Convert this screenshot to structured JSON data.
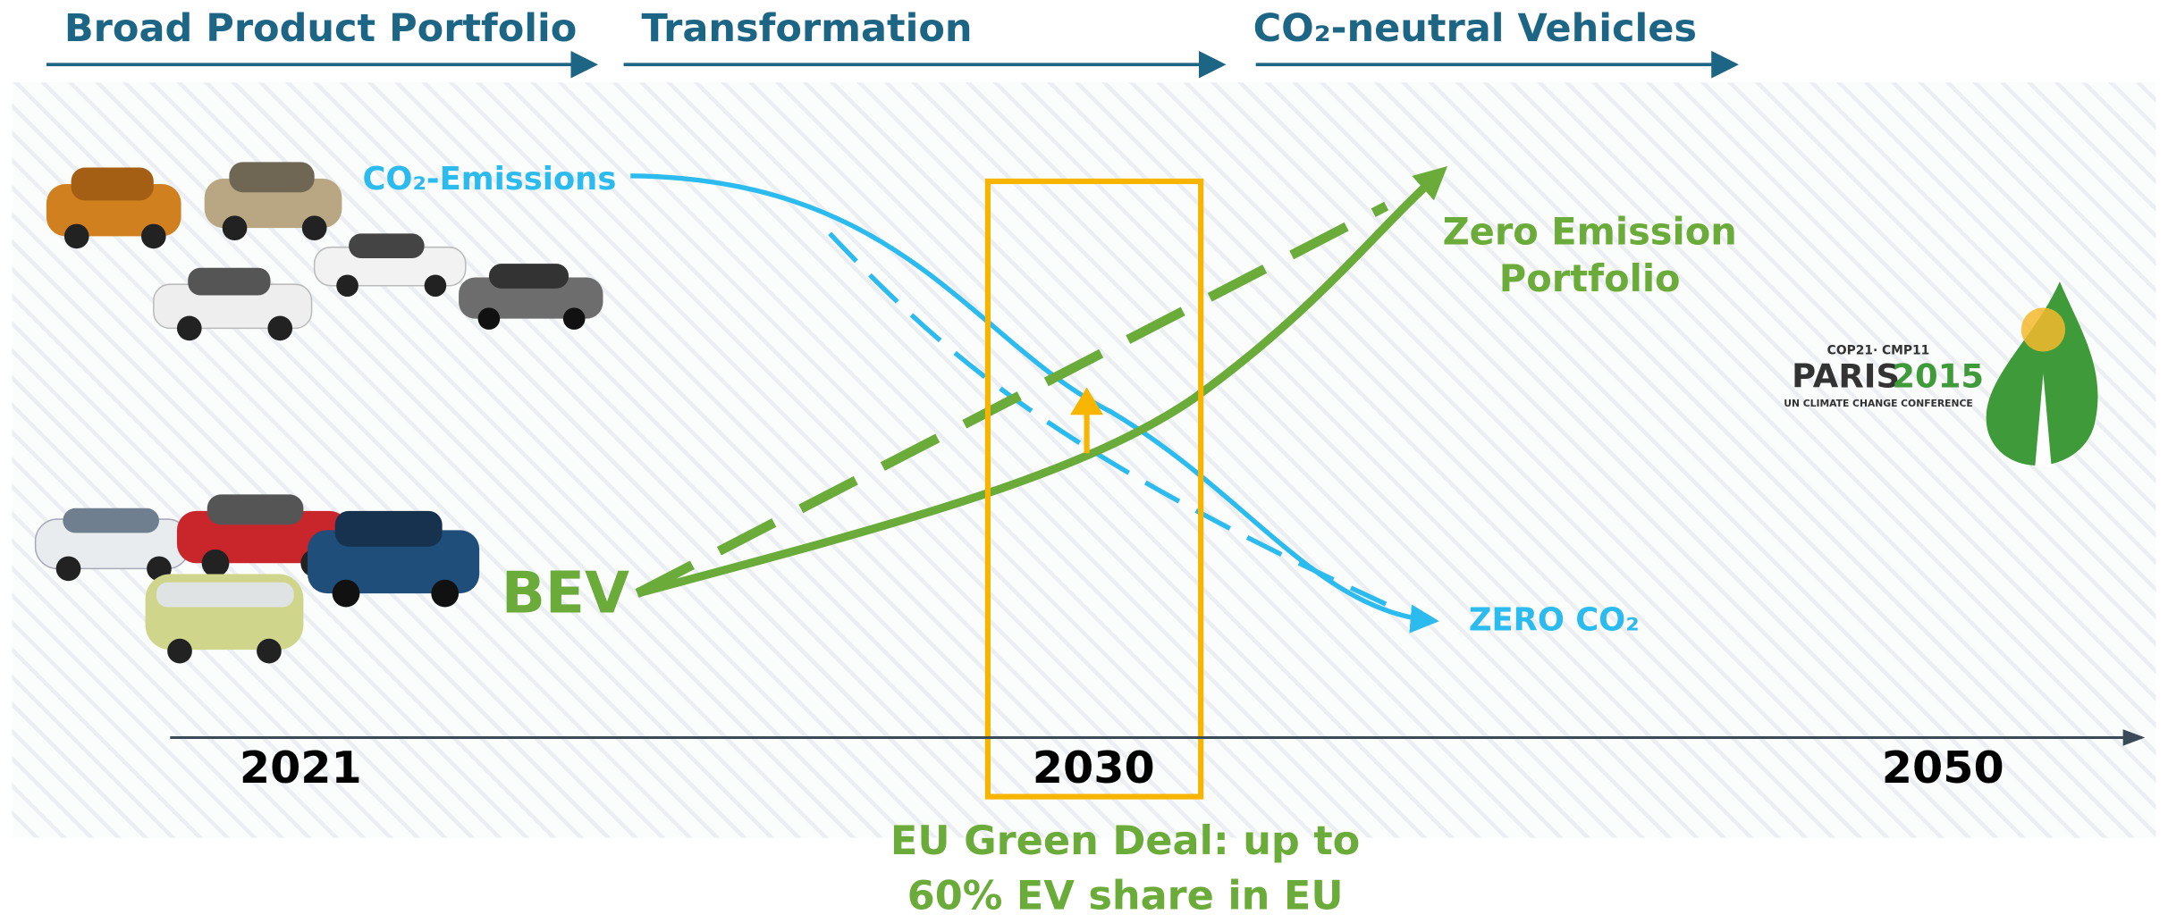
{
  "phases": [
    "Broad Product Portfolio",
    "Transformation",
    "CO₂-neutral Vehicles"
  ],
  "curves": {
    "emissions_label": "CO₂-Emissions",
    "emissions_end": "ZERO CO₂",
    "bev_label": "BEV",
    "bev_end": [
      "Zero Emission",
      "Portfolio"
    ]
  },
  "timeline": [
    "2021",
    "2030",
    "2050"
  ],
  "note": [
    "EU Green Deal: up to",
    "60% EV share in EU"
  ],
  "logo": {
    "top": "COP21· CMP11",
    "paris": "PARIS",
    "year": "2015",
    "sub": "UN CLIMATE CHANGE CONFERENCE"
  }
}
